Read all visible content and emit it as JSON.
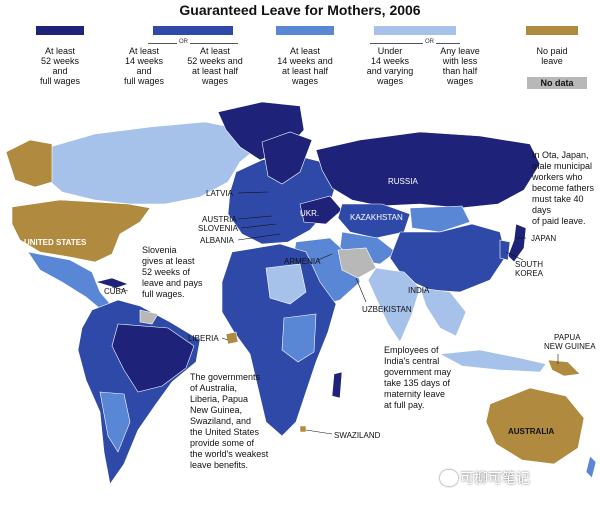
{
  "title": "Guaranteed Leave for Mothers, 2006",
  "colors": {
    "dark": "#1e2278",
    "medium": "#2f49a8",
    "light": "#5a86d6",
    "pale": "#a6c2ea",
    "tan": "#b08a3e",
    "nodata": "#b8b8b8",
    "ocean": "#ffffff"
  },
  "legend": {
    "or": "OR",
    "cat1": "At least\n52 weeks\nand\nfull wages",
    "cat2a": "At least\n14 weeks\nand\nfull wages",
    "cat2b": "At least\n52 weeks and\nat least half\nwages",
    "cat3": "At least\n14 weeks and\nat least half\nwages",
    "cat4a": "Under\n14 weeks\nand varying\nwages",
    "cat4b": "Any leave\nwith less\nthan half\nwages",
    "cat5": "No paid\nleave",
    "nodata": "No data"
  },
  "countries": {
    "russia": "RUSSIA",
    "united_states": "UNITED STATES",
    "kazakhstan": "KAZAKHSTAN",
    "ukr": "UKR.",
    "latvia": "LATVIA",
    "austria": "AUSTRIA",
    "slovenia": "SLOVENIA",
    "albania": "ALBANIA",
    "armenia": "ARMENIA",
    "india": "INDIA",
    "uzbekistan": "UZBEKISTAN",
    "cuba": "CUBA",
    "liberia": "LIBERIA",
    "japan": "JAPAN",
    "south_korea": "SOUTH\nKOREA",
    "papua_new_guinea": "PAPUA\nNEW GUINEA",
    "swaziland": "SWAZILAND",
    "australia": "AUSTRALIA"
  },
  "notes": {
    "japan": "In Ota, Japan,\nmale municipal\nworkers who\nbecome fathers\nmust take 40 days\nof paid leave.",
    "slovenia": "Slovenia\ngives at least\n52 weeks of\nleave and pays\nfull wages.",
    "india": "Employees of\nIndia's central\ngovernment may\ntake 135 days of\nmaternity leave\nat full pay.",
    "weakest": "The governments\nof Australia,\nLiberia, Papua\nNew Guinea,\nSwaziland, and\nthe United States\nprovide some of\nthe world's weakest\nleave benefits."
  },
  "watermark": "可柳可笔记"
}
